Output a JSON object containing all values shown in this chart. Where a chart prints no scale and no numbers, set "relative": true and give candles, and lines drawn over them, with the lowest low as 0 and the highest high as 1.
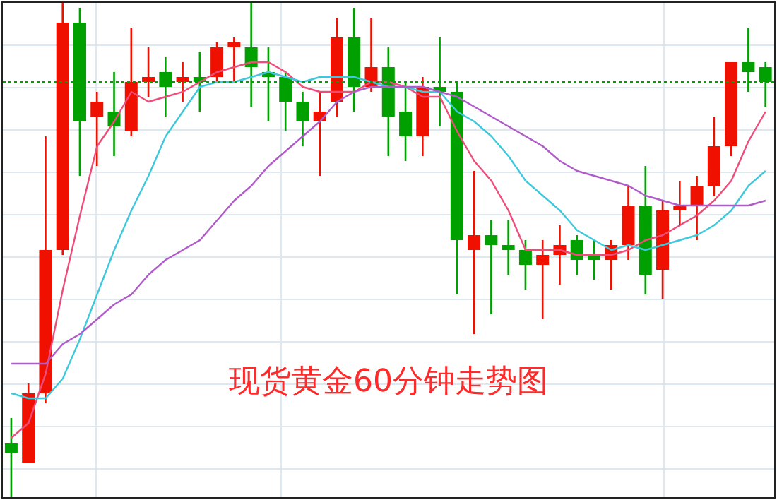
{
  "chart_data": {
    "type": "candlestick",
    "title": "现货黄金60分钟走势图",
    "relative": true,
    "grid": true,
    "categories": [
      null,
      null,
      null,
      null,
      null,
      null,
      null,
      null,
      null,
      null,
      null,
      null,
      null,
      null,
      null,
      null,
      null,
      null,
      null,
      null,
      null,
      null,
      null,
      null,
      null,
      null,
      null,
      null,
      null,
      null,
      null,
      null,
      null,
      null,
      null,
      null,
      null,
      null,
      null,
      null,
      null,
      null,
      null,
      null,
      null
    ],
    "ohlc": [
      [
        0.11,
        0.16,
        0,
        0.09
      ],
      [
        0.07,
        0.23,
        0.07,
        0.21
      ],
      [
        0.21,
        0.73,
        0.19,
        0.5
      ],
      [
        0.5,
        1,
        0.49,
        0.96
      ],
      [
        0.96,
        0.99,
        0.65,
        0.76
      ],
      [
        0.77,
        0.82,
        0.67,
        0.8
      ],
      [
        0.78,
        0.86,
        0.69,
        0.75
      ],
      [
        0.74,
        0.95,
        0.73,
        0.84
      ],
      [
        0.84,
        0.91,
        0.81,
        0.85
      ],
      [
        0.86,
        0.89,
        0.77,
        0.83
      ],
      [
        0.84,
        0.88,
        0.8,
        0.85
      ],
      [
        0.85,
        0.9,
        0.78,
        0.84
      ],
      [
        0.85,
        0.92,
        0.84,
        0.91
      ],
      [
        0.91,
        0.93,
        0.84,
        0.92
      ],
      [
        0.91,
        1,
        0.79,
        0.87
      ],
      [
        0.86,
        0.91,
        0.76,
        0.85
      ],
      [
        0.85,
        0.86,
        0.74,
        0.8
      ],
      [
        0.8,
        0.82,
        0.71,
        0.76
      ],
      [
        0.76,
        0.82,
        0.65,
        0.78
      ],
      [
        0.8,
        0.97,
        0.77,
        0.93
      ],
      [
        0.93,
        0.99,
        0.78,
        0.83
      ],
      [
        0.83,
        0.97,
        0.82,
        0.87
      ],
      [
        0.87,
        0.91,
        0.69,
        0.77
      ],
      [
        0.78,
        0.84,
        0.68,
        0.73
      ],
      [
        0.73,
        0.85,
        0.69,
        0.83
      ],
      [
        0.83,
        0.93,
        0.75,
        0.82
      ],
      [
        0.82,
        0.84,
        0.41,
        0.52
      ],
      [
        0.5,
        0.66,
        0.33,
        0.53
      ],
      [
        0.53,
        0.56,
        0.37,
        0.51
      ],
      [
        0.51,
        0.56,
        0.45,
        0.5
      ],
      [
        0.5,
        0.52,
        0.42,
        0.47
      ],
      [
        0.47,
        0.52,
        0.36,
        0.49
      ],
      [
        0.49,
        0.55,
        0.43,
        0.51
      ],
      [
        0.52,
        0.53,
        0.45,
        0.48
      ],
      [
        0.49,
        0.52,
        0.44,
        0.48
      ],
      [
        0.48,
        0.52,
        0.42,
        0.51
      ],
      [
        0.51,
        0.63,
        0.48,
        0.59
      ],
      [
        0.59,
        0.67,
        0.41,
        0.45
      ],
      [
        0.46,
        0.6,
        0.4,
        0.58
      ],
      [
        0.58,
        0.64,
        0.55,
        0.59
      ],
      [
        0.59,
        0.65,
        0.52,
        0.63
      ],
      [
        0.63,
        0.77,
        0.61,
        0.71
      ],
      [
        0.71,
        0.88,
        0.69,
        0.88
      ],
      [
        0.88,
        0.95,
        0.82,
        0.86
      ],
      [
        0.87,
        0.88,
        0.79,
        0.84
      ]
    ],
    "colors": [
      "#00a000",
      "#f01000",
      "#f01000",
      "#f01000",
      "#00a000",
      "#f01000",
      "#00a000",
      "#f01000",
      "#f01000",
      "#00a000",
      "#f01000",
      "#00a000",
      "#f01000",
      "#f01000",
      "#00a000",
      "#00a000",
      "#00a000",
      "#00a000",
      "#f01000",
      "#f01000",
      "#00a000",
      "#f01000",
      "#00a000",
      "#00a000",
      "#f01000",
      "#00a000",
      "#00a000",
      "#f01000",
      "#00a000",
      "#00a000",
      "#00a000",
      "#f01000",
      "#f01000",
      "#00a000",
      "#00a000",
      "#f01000",
      "#f01000",
      "#00a000",
      "#f01000",
      "#f01000",
      "#f01000",
      "#f01000",
      "#f01000",
      "#00a000",
      "#00a000"
    ],
    "series": [
      {
        "type": "line",
        "color": "#ee4d7a",
        "values": [
          0.12,
          0.15,
          0.25,
          0.42,
          0.57,
          0.71,
          0.76,
          0.82,
          0.8,
          0.81,
          0.82,
          0.84,
          0.86,
          0.87,
          0.88,
          0.88,
          0.86,
          0.83,
          0.82,
          0.82,
          0.82,
          0.84,
          0.84,
          0.83,
          0.81,
          0.81,
          0.74,
          0.68,
          0.64,
          0.58,
          0.5,
          0.5,
          0.5,
          0.49,
          0.49,
          0.49,
          0.5,
          0.52,
          0.53,
          0.55,
          0.57,
          0.6,
          0.64,
          0.72,
          0.78
        ]
      },
      {
        "type": "line",
        "color": "#3ec8dc",
        "values": [
          0.21,
          0.2,
          0.2,
          0.24,
          0.32,
          0.41,
          0.5,
          0.58,
          0.65,
          0.73,
          0.78,
          0.83,
          0.84,
          0.84,
          0.85,
          0.86,
          0.85,
          0.84,
          0.85,
          0.85,
          0.85,
          0.84,
          0.83,
          0.83,
          0.82,
          0.82,
          0.78,
          0.76,
          0.73,
          0.69,
          0.64,
          0.61,
          0.58,
          0.54,
          0.52,
          0.5,
          0.51,
          0.5,
          0.51,
          0.52,
          0.53,
          0.55,
          0.58,
          0.63,
          0.66
        ]
      },
      {
        "type": "line",
        "color": "#b05cc8",
        "values": [
          0.27,
          0.27,
          0.27,
          0.31,
          0.33,
          0.36,
          0.39,
          0.41,
          0.45,
          0.48,
          0.5,
          0.52,
          0.56,
          0.6,
          0.63,
          0.67,
          0.7,
          0.73,
          0.76,
          0.8,
          0.82,
          0.83,
          0.83,
          0.83,
          0.83,
          0.82,
          0.81,
          0.79,
          0.77,
          0.75,
          0.73,
          0.71,
          0.68,
          0.66,
          0.65,
          0.64,
          0.63,
          0.61,
          0.6,
          0.59,
          0.59,
          0.59,
          0.59,
          0.59,
          0.6
        ]
      }
    ],
    "ref_lines": [
      {
        "axis": "y",
        "value": 0.84,
        "color": "#00a000",
        "line_style": "dotted"
      }
    ]
  }
}
